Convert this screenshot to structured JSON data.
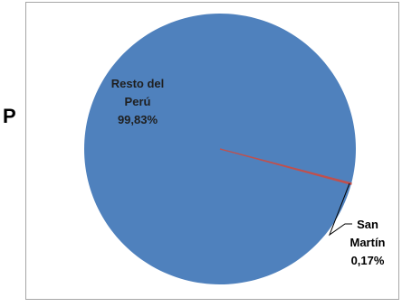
{
  "page": {
    "stray_letter": "P"
  },
  "chart_data": {
    "type": "pie",
    "slices": [
      {
        "label_lines": [
          "Resto del",
          "Perú",
          "99,83%"
        ],
        "value": 99.83,
        "color": "#4f81bd"
      },
      {
        "label_lines": [
          "San",
          "Martín",
          "0,17%"
        ],
        "value": 0.17,
        "color": "#c0504d"
      }
    ],
    "label_color_inside": "#1f1f1f",
    "label_color_outside": "#000000",
    "leader_color": "#000000"
  }
}
